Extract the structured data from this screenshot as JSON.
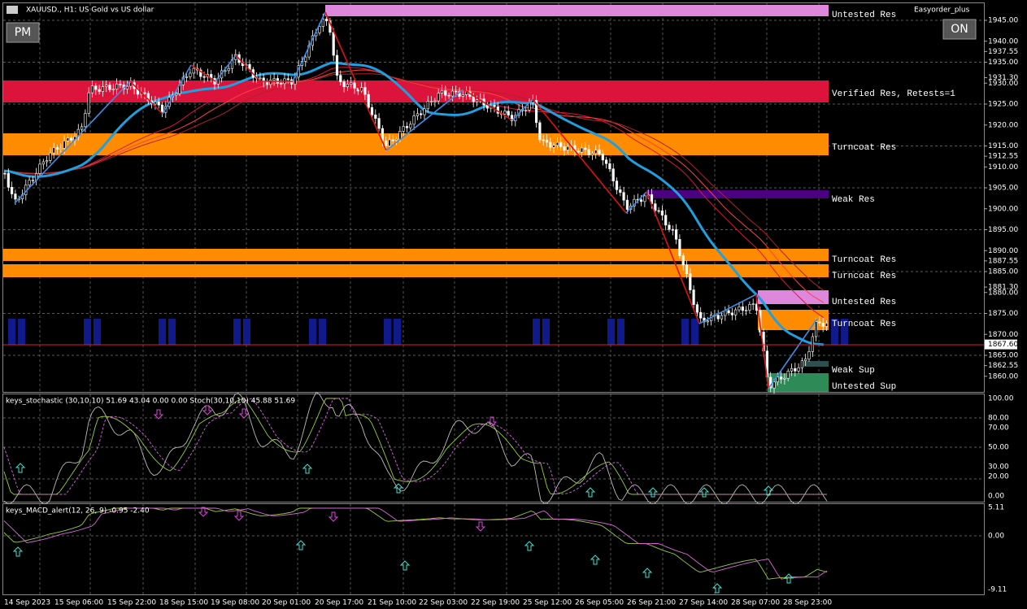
{
  "header": {
    "symbol": "XAUUSD., H1: US Gold vs US dollar",
    "expert": "Easyorder_plus",
    "buttons": [
      "PM",
      "ON"
    ]
  },
  "zones": [
    "Untested Res",
    "Verified Res, Retests=1",
    "Turncoat Res",
    "Weak Res",
    "Turncoat Res",
    "Turncoat Res",
    "Untested Res",
    "Turncoat Res",
    "Weak Sup",
    "Untested Sup"
  ],
  "price_axis": [
    "1945.00",
    "1940.00",
    "1937.55",
    "1935.00",
    "1931.30",
    "1930.00",
    "1925.00",
    "1920.00",
    "1915.00",
    "1912.55",
    "1910.00",
    "1905.00",
    "1900.00",
    "1895.00",
    "1890.00",
    "1887.55",
    "1885.00",
    "1881.30",
    "1880.00",
    "1875.00",
    "1870.00",
    "1865.00",
    "1862.55",
    "1860.00"
  ],
  "current_price": "1867.60",
  "indicators": [
    {
      "title": "keys_stochastic (30,10,10) 51.69 43.04 0.00 0.00 Stoch(30,10,10) 45.88 51.69",
      "axis": [
        "100.00",
        "80.00",
        "70.00",
        "50.00",
        "30.00",
        "20.00",
        "0.00"
      ]
    },
    {
      "title": "keys_MACD_alert(12, 26, 9) -0.95 -2.40",
      "axis": [
        "5.11",
        "0.00",
        "-9.11"
      ]
    }
  ],
  "time_axis": [
    "14 Sep 2023",
    "15 Sep 06:00",
    "15 Sep 22:00",
    "18 Sep 15:00",
    "19 Sep 08:00",
    "20 Sep 01:00",
    "20 Sep 17:00",
    "21 Sep 10:00",
    "22 Sep 03:00",
    "22 Sep 19:00",
    "25 Sep 12:00",
    "26 Sep 05:00",
    "26 Sep 21:00",
    "27 Sep 14:00",
    "28 Sep 07:00",
    "28 Sep 23:00"
  ]
}
